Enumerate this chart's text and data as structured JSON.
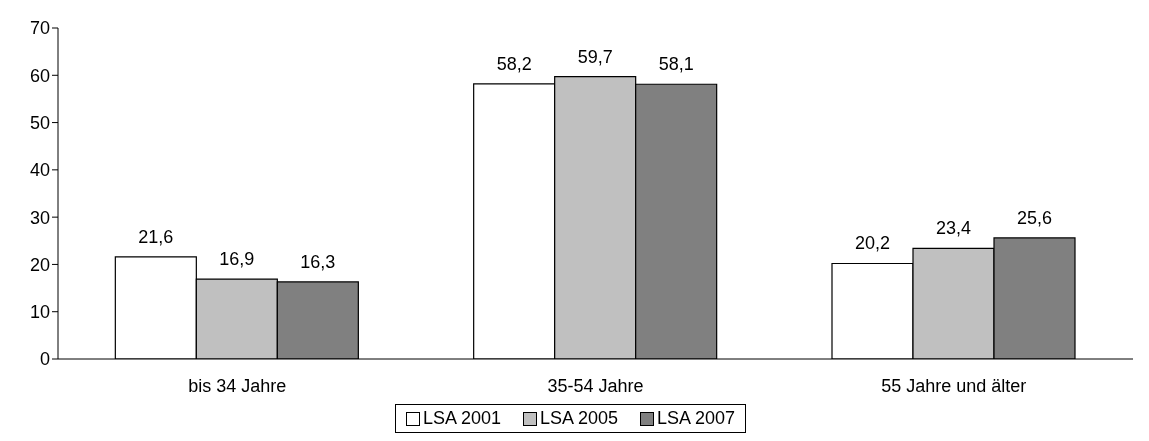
{
  "chart_data": {
    "type": "bar",
    "categories": [
      "bis 34 Jahre",
      "35-54 Jahre",
      "55 Jahre und älter"
    ],
    "series": [
      {
        "name": "LSA 2001",
        "color": "#ffffff",
        "values": [
          21.6,
          58.2,
          20.2
        ],
        "value_labels": [
          "21,6",
          "58,2",
          "20,2"
        ]
      },
      {
        "name": "LSA 2005",
        "color": "#c0c0c0",
        "values": [
          16.9,
          59.7,
          23.4
        ],
        "value_labels": [
          "16,9",
          "59,7",
          "23,4"
        ]
      },
      {
        "name": "LSA 2007",
        "color": "#808080",
        "values": [
          16.3,
          58.1,
          25.6
        ],
        "value_labels": [
          "16,3",
          "58,1",
          "25,6"
        ]
      }
    ],
    "ylim": [
      0,
      70
    ],
    "yticks": [
      0,
      10,
      20,
      30,
      40,
      50,
      60,
      70
    ],
    "grid": false,
    "legend": "bottom"
  }
}
